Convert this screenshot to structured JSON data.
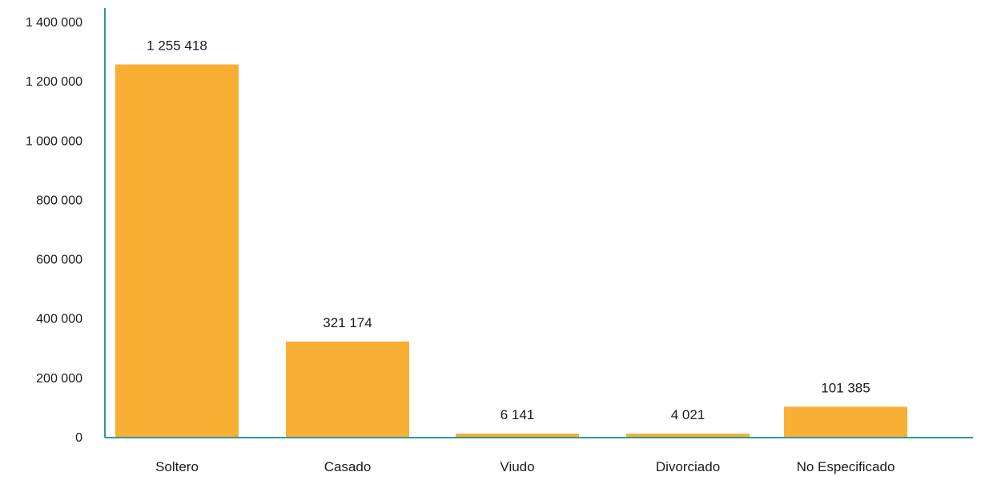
{
  "chart_data": {
    "type": "bar",
    "categories": [
      "Soltero",
      "Casado",
      "Viudo",
      "Divorciado",
      "No Especificado"
    ],
    "values": [
      1255418,
      321174,
      6141,
      4021,
      101385
    ],
    "value_labels": [
      "1 255 418",
      "321 174",
      "6 141",
      "4 021",
      "101 385"
    ],
    "y_ticks": [
      0,
      200000,
      400000,
      600000,
      800000,
      1000000,
      1200000,
      1400000
    ],
    "y_tick_labels": [
      "0",
      "200 000",
      "400 000",
      "600 000",
      "800 000",
      "1 000 000",
      "1 200 000",
      "1 400 000"
    ],
    "ylim": [
      0,
      1400000
    ],
    "title": "",
    "xlabel": "",
    "ylabel": "",
    "grid": false,
    "legend": "none",
    "colors": {
      "bar": "#F8AF33",
      "axis": "#2A9A9A"
    }
  }
}
